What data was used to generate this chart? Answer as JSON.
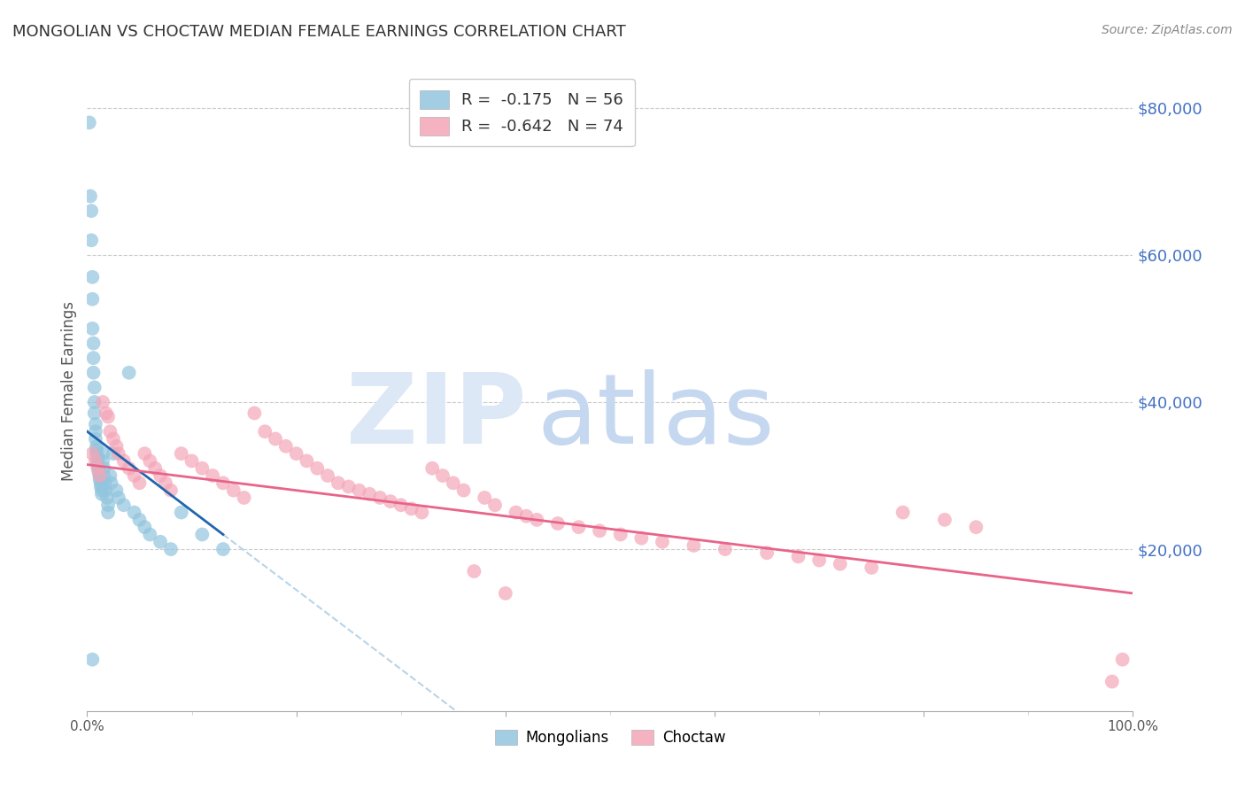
{
  "title": "MONGOLIAN VS CHOCTAW MEDIAN FEMALE EARNINGS CORRELATION CHART",
  "source": "Source: ZipAtlas.com",
  "ylabel": "Median Female Earnings",
  "mongolian_color": "#92c5de",
  "choctaw_color": "#f4a6b8",
  "mongolian_line_color": "#2166ac",
  "choctaw_line_color": "#e8648a",
  "mongolian_dashed_color": "#b8d4e8",
  "background_color": "#ffffff",
  "grid_color": "#cccccc",
  "title_color": "#333333",
  "right_label_color": "#4472c4",
  "mongolians_label": "Mongolians",
  "choctaw_label": "Choctaw",
  "mongolian_R": -0.175,
  "mongolian_N": 56,
  "choctaw_R": -0.642,
  "choctaw_N": 74,
  "xlim": [
    0.0,
    1.0
  ],
  "ylim": [
    -2000,
    85000
  ],
  "legend_row1": "R =  -0.175   N = 56",
  "legend_row2": "R =  -0.642   N = 74",
  "mongolian_points_x": [
    0.002,
    0.003,
    0.004,
    0.004,
    0.005,
    0.005,
    0.005,
    0.006,
    0.006,
    0.006,
    0.007,
    0.007,
    0.007,
    0.008,
    0.008,
    0.008,
    0.009,
    0.009,
    0.009,
    0.01,
    0.01,
    0.01,
    0.011,
    0.011,
    0.012,
    0.012,
    0.013,
    0.013,
    0.014,
    0.014,
    0.015,
    0.015,
    0.016,
    0.016,
    0.017,
    0.018,
    0.019,
    0.02,
    0.02,
    0.022,
    0.023,
    0.025,
    0.028,
    0.03,
    0.035,
    0.04,
    0.045,
    0.05,
    0.055,
    0.06,
    0.07,
    0.08,
    0.09,
    0.11,
    0.13,
    0.005
  ],
  "mongolian_points_y": [
    78000,
    68000,
    66000,
    62000,
    57000,
    54000,
    50000,
    48000,
    46000,
    44000,
    42000,
    40000,
    38500,
    37000,
    36000,
    35000,
    34000,
    33500,
    33000,
    32500,
    32000,
    31500,
    31000,
    30500,
    30000,
    29500,
    29000,
    28500,
    28000,
    27500,
    33000,
    32000,
    31000,
    30000,
    29000,
    28000,
    27000,
    26000,
    25000,
    30000,
    29000,
    33000,
    28000,
    27000,
    26000,
    44000,
    25000,
    24000,
    23000,
    22000,
    21000,
    20000,
    25000,
    22000,
    20000,
    5000
  ],
  "choctaw_points_x": [
    0.005,
    0.008,
    0.01,
    0.012,
    0.015,
    0.018,
    0.02,
    0.022,
    0.025,
    0.028,
    0.03,
    0.035,
    0.04,
    0.045,
    0.05,
    0.055,
    0.06,
    0.065,
    0.07,
    0.075,
    0.08,
    0.09,
    0.1,
    0.11,
    0.12,
    0.13,
    0.14,
    0.15,
    0.16,
    0.17,
    0.18,
    0.19,
    0.2,
    0.21,
    0.22,
    0.23,
    0.24,
    0.25,
    0.26,
    0.27,
    0.28,
    0.29,
    0.3,
    0.31,
    0.32,
    0.33,
    0.34,
    0.35,
    0.36,
    0.37,
    0.38,
    0.39,
    0.4,
    0.41,
    0.42,
    0.43,
    0.45,
    0.47,
    0.49,
    0.51,
    0.53,
    0.55,
    0.58,
    0.61,
    0.65,
    0.68,
    0.7,
    0.72,
    0.75,
    0.78,
    0.82,
    0.85,
    0.98,
    0.99
  ],
  "choctaw_points_y": [
    33000,
    32000,
    31000,
    30000,
    40000,
    38500,
    38000,
    36000,
    35000,
    34000,
    33000,
    32000,
    31000,
    30000,
    29000,
    33000,
    32000,
    31000,
    30000,
    29000,
    28000,
    33000,
    32000,
    31000,
    30000,
    29000,
    28000,
    27000,
    38500,
    36000,
    35000,
    34000,
    33000,
    32000,
    31000,
    30000,
    29000,
    28500,
    28000,
    27500,
    27000,
    26500,
    26000,
    25500,
    25000,
    31000,
    30000,
    29000,
    28000,
    17000,
    27000,
    26000,
    14000,
    25000,
    24500,
    24000,
    23500,
    23000,
    22500,
    22000,
    21500,
    21000,
    20500,
    20000,
    19500,
    19000,
    18500,
    18000,
    17500,
    25000,
    24000,
    23000,
    2000,
    5000
  ],
  "mongolian_line_x0": 0.0,
  "mongolian_line_x1": 0.13,
  "mongolian_line_y0": 36000,
  "mongolian_line_y1": 22000,
  "choctaw_line_x0": 0.0,
  "choctaw_line_x1": 1.0,
  "choctaw_line_y0": 31500,
  "choctaw_line_y1": 14000
}
